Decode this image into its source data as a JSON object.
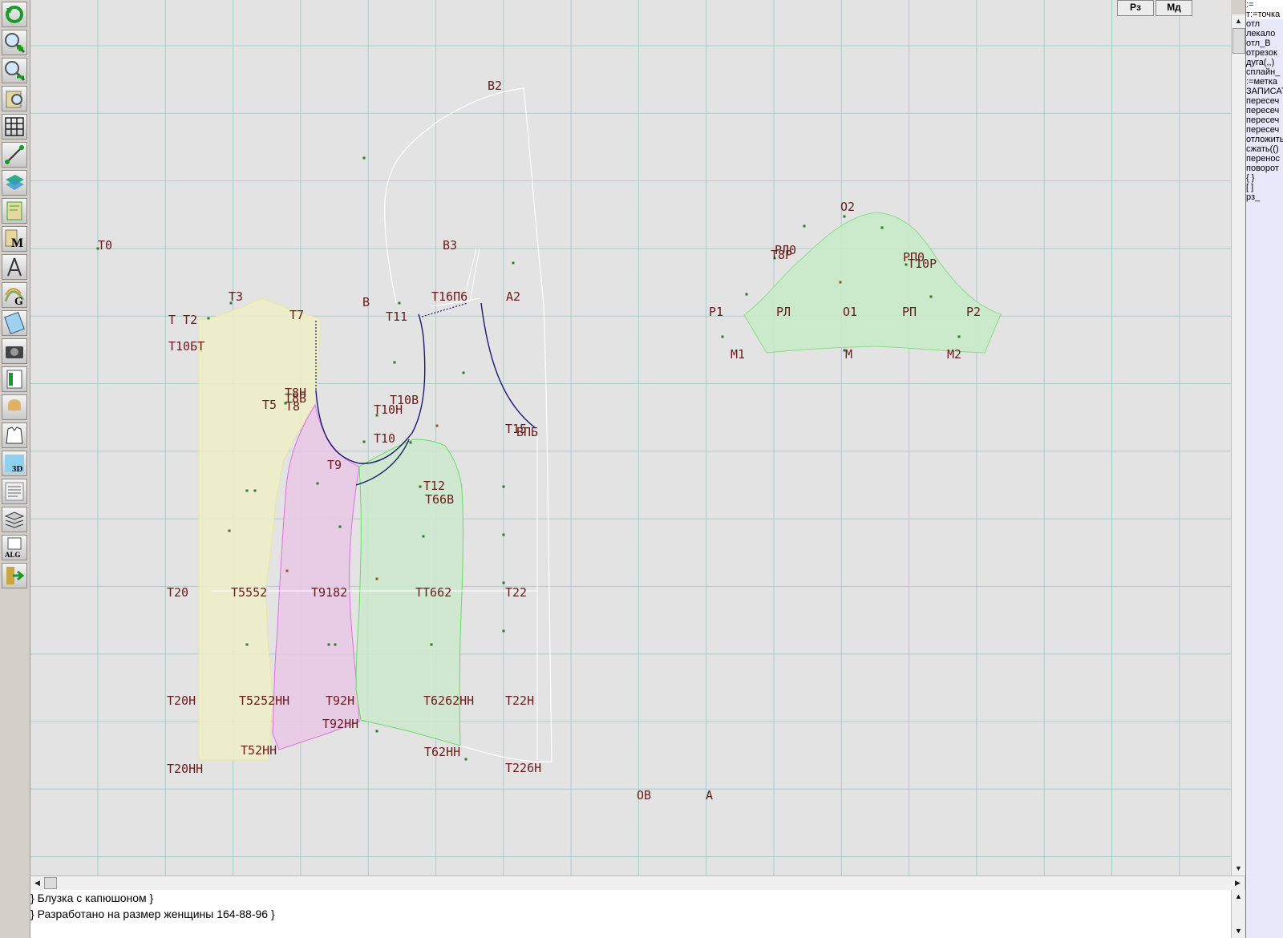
{
  "toolbar": {
    "tools": [
      "refresh-icon",
      "zoom-in-icon",
      "zoom-out-icon",
      "zoom-fit-icon",
      "grid-icon",
      "line-tool-icon",
      "layer-icon",
      "pattern-piece-icon",
      "measurements-icon",
      "compass-icon",
      "grading-icon",
      "calculator-icon",
      "camera-icon",
      "table-icon",
      "model-photo-icon",
      "garment-sketch-icon",
      "3d-icon",
      "text-document-icon",
      "stack-icon",
      "algorithm-icon",
      "exit-icon"
    ],
    "measurements_letter": "M",
    "grading_letter": "G",
    "three_d_label": "3D",
    "algorithm_label": "ALG"
  },
  "top_buttons": {
    "rz": "Рз",
    "md": "Мд"
  },
  "canvas": {
    "background": "#e3e3e3",
    "grid_color": "#a9cccc",
    "label_color": "#6b1a1a",
    "back_fill": "#eeeec8",
    "side_fill": "#e8c8e4",
    "front_fill": "#cce8cc",
    "sleeve_fill": "#c8eac8",
    "labels": {
      "t0": "Т0",
      "t3": "Т3",
      "t2": "Т Т2",
      "t7": "Т7",
      "t10bt": "Т10БТ",
      "t8n": "Т8Н",
      "t8b": "Т8В",
      "t5": "Т5",
      "t8": "Т8",
      "b2": "В2",
      "b3": "В3",
      "b": "В",
      "t11": "Т11",
      "t16": "Т16П6",
      "a2": "А2",
      "t10v": "Т10В",
      "t10n": "Т10Н",
      "t10": "Т10",
      "t15": "Т15",
      "vpb": "ВПБ",
      "t9": "Т9",
      "t12": "Т12",
      "t66v": "Т66В",
      "t20": "Т20",
      "t55": "Т5552",
      "t918": "Т9182",
      "t662": "ТТ662",
      "t22": "Т22",
      "t20n": "Т20Н",
      "t52n": "Т5252НН",
      "t92n": "Т92Н",
      "t60n": "Т6262НН",
      "t22n": "Т22Н",
      "t92hh": "Т92НН",
      "t52hh": "Т52НН",
      "t62hh": "Т62НН",
      "t20hh": "Т20НН",
      "t226": "Т226Н",
      "ov": "ОВ",
      "a": "А",
      "o2": "О2",
      "rp0": "РП0",
      "t10r": "Т10Р",
      "rl0": "РЛ0",
      "t8r": "Т8Р",
      "r1": "Р1",
      "rl": "РЛ",
      "o1": "О1",
      "rp": "РП",
      "r2": "Р2",
      "m1": "М1",
      "m": "М",
      "m2": "М2"
    }
  },
  "console": {
    "lines": [
      "} Блузка с капюшоном }",
      "} Разработано на размер женщины 164-88-96 }"
    ]
  },
  "right_panel": {
    "items": [
      ":=",
      "т:=точка",
      "отл",
      "лекало",
      "отл_В",
      "отрезок",
      "дуга(,,)",
      "сплайн_",
      ":=метка",
      "ЗАПИСАТЬ",
      "пересеч",
      "пересеч",
      "пересеч",
      "пересеч",
      "отложить",
      "сжать(()",
      "перенос",
      "поворот",
      "{ }",
      "[ ]",
      "рз_"
    ]
  }
}
